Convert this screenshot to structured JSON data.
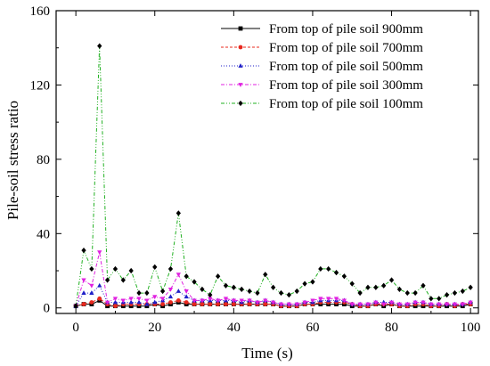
{
  "chart_data": {
    "type": "line",
    "title": "",
    "xlabel": "Time (s)",
    "ylabel": "Pile-soil stress ratio",
    "xlim": [
      -5,
      102
    ],
    "ylim": [
      -3,
      160
    ],
    "xticks": [
      0,
      20,
      40,
      60,
      80,
      100
    ],
    "yticks": [
      0,
      40,
      80,
      120,
      160
    ],
    "grid": false,
    "legend_position": "top-right",
    "x": [
      0,
      2,
      4,
      6,
      8,
      10,
      12,
      14,
      16,
      18,
      20,
      22,
      24,
      26,
      28,
      30,
      32,
      34,
      36,
      38,
      40,
      42,
      44,
      46,
      48,
      50,
      52,
      54,
      56,
      58,
      60,
      62,
      64,
      66,
      68,
      70,
      72,
      74,
      76,
      78,
      80,
      82,
      84,
      86,
      88,
      90,
      92,
      94,
      96,
      98,
      100
    ],
    "series": [
      {
        "name": "From top of pile soil 900mm",
        "color": "#000000",
        "marker": "square",
        "line_style": "solid",
        "values": [
          1,
          2,
          2,
          4,
          1,
          1,
          1,
          1,
          1,
          1,
          2,
          1,
          2,
          3,
          2,
          2,
          2,
          2,
          2,
          2,
          2,
          2,
          2,
          2,
          2,
          2,
          1,
          1,
          1,
          2,
          2,
          2,
          2,
          2,
          2,
          1,
          1,
          1,
          2,
          1,
          2,
          1,
          1,
          1,
          1,
          1,
          1,
          1,
          1,
          1,
          2
        ]
      },
      {
        "name": "From top of pile soil 700mm",
        "color": "#e8281e",
        "marker": "circle",
        "line_style": "dashed",
        "values": [
          1,
          2,
          3,
          5,
          2,
          1,
          2,
          2,
          2,
          2,
          2,
          2,
          3,
          4,
          3,
          2,
          2,
          2,
          2,
          2,
          2,
          2,
          2,
          2,
          2,
          2,
          1,
          1,
          1,
          2,
          2,
          3,
          3,
          3,
          3,
          2,
          1,
          1,
          2,
          2,
          2,
          1,
          1,
          2,
          2,
          1,
          1,
          2,
          1,
          2,
          2
        ]
      },
      {
        "name": "From top of pile soil 500mm",
        "color": "#1f1fc8",
        "marker": "triangle-up",
        "line_style": "dotted",
        "values": [
          1,
          8,
          8,
          12,
          3,
          3,
          3,
          3,
          3,
          2,
          3,
          4,
          6,
          9,
          6,
          4,
          4,
          4,
          4,
          4,
          4,
          3,
          4,
          3,
          4,
          3,
          2,
          2,
          2,
          3,
          3,
          4,
          4,
          4,
          4,
          2,
          2,
          2,
          3,
          3,
          3,
          2,
          2,
          3,
          3,
          2,
          2,
          2,
          2,
          2,
          3
        ]
      },
      {
        "name": "From top of pile soil 300mm",
        "color": "#e020e0",
        "marker": "triangle-down",
        "line_style": "dash-dot",
        "values": [
          1,
          15,
          12,
          30,
          3,
          5,
          4,
          5,
          5,
          4,
          6,
          5,
          10,
          18,
          9,
          4,
          4,
          5,
          4,
          5,
          4,
          4,
          4,
          3,
          4,
          3,
          2,
          2,
          2,
          3,
          4,
          5,
          5,
          5,
          4,
          2,
          2,
          2,
          3,
          2,
          3,
          2,
          2,
          3,
          3,
          2,
          2,
          2,
          2,
          2,
          3
        ]
      },
      {
        "name": "From top of pile soil 100mm",
        "color": "#20b020",
        "marker": "diamond",
        "line_style": "dash-dot-dot",
        "values": [
          1,
          31,
          21,
          141,
          15,
          21,
          15,
          20,
          8,
          8,
          22,
          9,
          21,
          51,
          17,
          14,
          10,
          7,
          17,
          12,
          11,
          10,
          9,
          8,
          18,
          11,
          8,
          7,
          9,
          13,
          14,
          21,
          21,
          19,
          17,
          13,
          8,
          11,
          11,
          12,
          15,
          10,
          8,
          8,
          12,
          5,
          5,
          7,
          8,
          9,
          11
        ]
      }
    ]
  }
}
